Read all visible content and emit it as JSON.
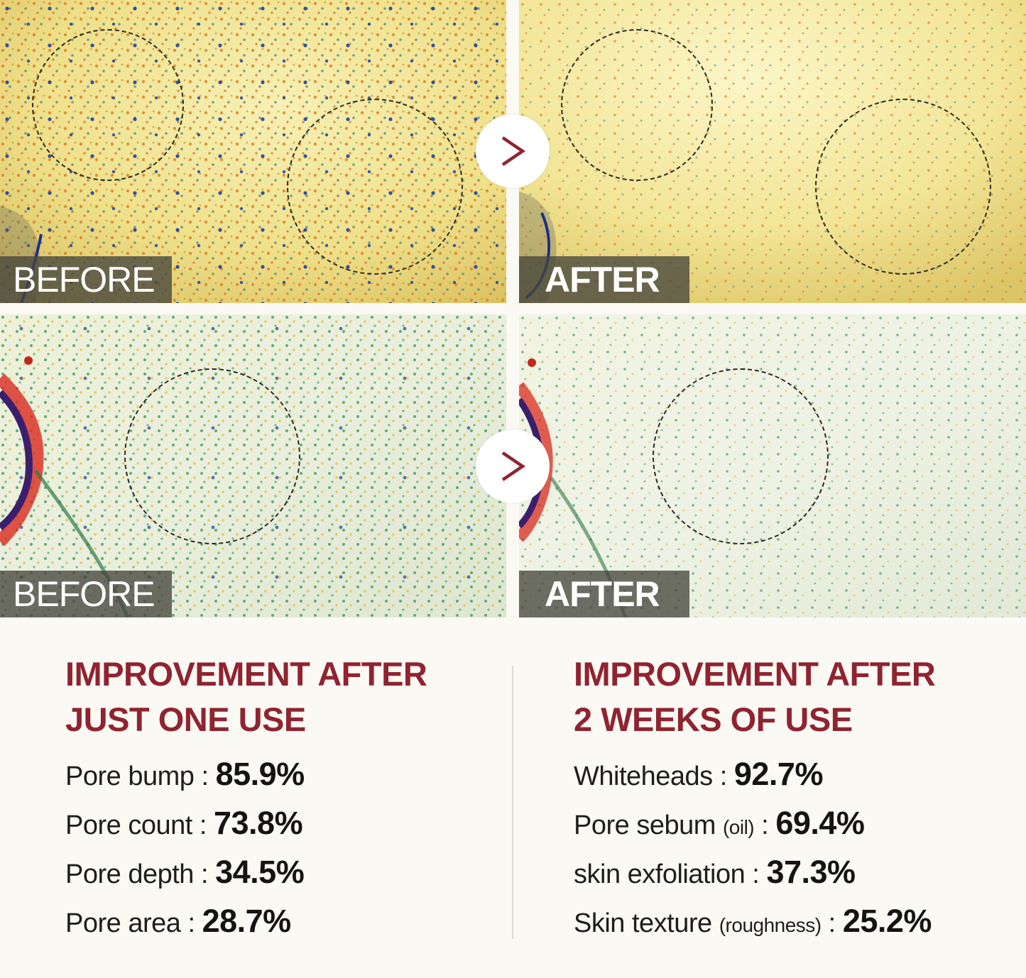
{
  "panels": {
    "top_before_label": "BEFORE",
    "top_after_label": "AFTER",
    "bottom_before_label": "BEFORE",
    "bottom_after_label": "AFTER"
  },
  "icons": {
    "arrow": "chevron-right-icon"
  },
  "colors": {
    "accent": "#8f2430",
    "background": "#fbf9f3"
  },
  "left": {
    "heading_line1": "IMPROVEMENT AFTER",
    "heading_line2": "JUST ONE USE",
    "stats": [
      {
        "label": "Pore bump",
        "note": "",
        "value": "85.9%"
      },
      {
        "label": "Pore count",
        "note": "",
        "value": "73.8%"
      },
      {
        "label": "Pore depth",
        "note": "",
        "value": "34.5%"
      },
      {
        "label": "Pore area",
        "note": "",
        "value": "28.7%"
      }
    ]
  },
  "right": {
    "heading_line1": "IMPROVEMENT AFTER",
    "heading_line2": "2 WEEKS OF USE",
    "stats": [
      {
        "label": "Whiteheads",
        "note": "",
        "value": "92.7%"
      },
      {
        "label": "Pore sebum",
        "note": "(oil)",
        "value": "69.4%"
      },
      {
        "label": "skin exfoliation",
        "note": "",
        "value": "37.3%"
      },
      {
        "label": "Skin texture",
        "note": "(roughness)",
        "value": "25.2%"
      }
    ]
  }
}
